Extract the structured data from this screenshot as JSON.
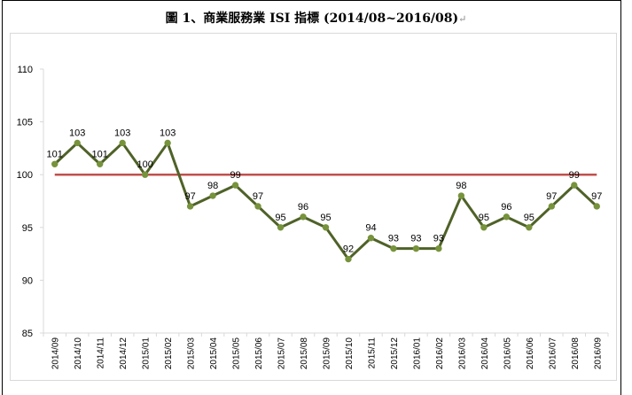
{
  "title": {
    "text": "圖 1、商業服務業 ISI 指標 (2014/08~2016/08)",
    "return_mark": "↵"
  },
  "colors": {
    "series_line": "#4f6228",
    "series_marker": "#77933c",
    "reference_line": "#c0504d",
    "grid": "#d9d9d9"
  },
  "chart_data": {
    "type": "line",
    "categories": [
      "2014/09",
      "2014/10",
      "2014/11",
      "2014/12",
      "2015/01",
      "2015/02",
      "2015/03",
      "2015/04",
      "2015/05",
      "2015/06",
      "2015/07",
      "2015/08",
      "2015/09",
      "2015/10",
      "2015/11",
      "2015/12",
      "2016/01",
      "2016/02",
      "2016/03",
      "2016/04",
      "2016/05",
      "2016/06",
      "2016/07",
      "2016/08",
      "2016/09"
    ],
    "series": [
      {
        "values": [
          101,
          103,
          101,
          103,
          100,
          103,
          97,
          98,
          99,
          97,
          95,
          96,
          95,
          92,
          94,
          93,
          93,
          93,
          98,
          95,
          96,
          95,
          97,
          99,
          97
        ]
      }
    ],
    "reference_line": {
      "value": 100
    },
    "ylim": [
      85,
      110
    ],
    "yticks": [
      85,
      90,
      95,
      100,
      105,
      110
    ],
    "grid": false,
    "data_labels": true,
    "title": "",
    "xlabel": "",
    "ylabel": ""
  }
}
